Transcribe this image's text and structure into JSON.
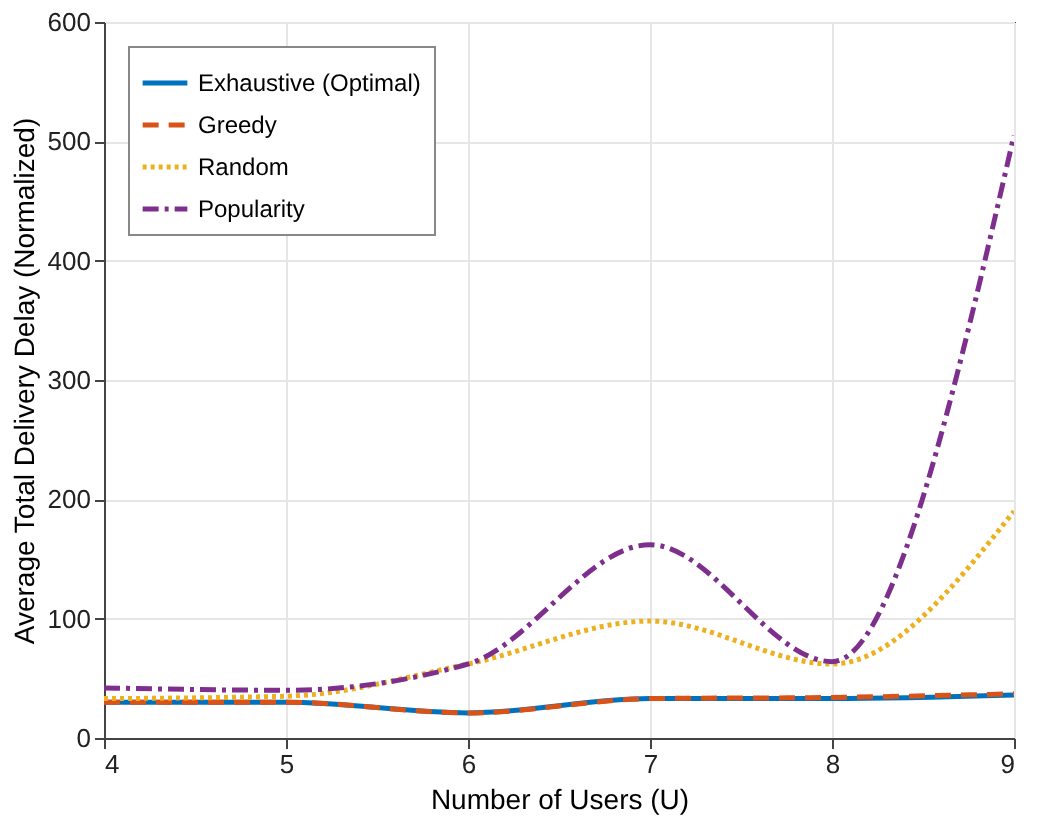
{
  "chart_data": {
    "type": "line",
    "xlabel": "Number of Users (U)",
    "ylabel": "Average Total Delivery Delay (Normalized)",
    "x": [
      4,
      5,
      6,
      7,
      8,
      9
    ],
    "xlim": [
      4,
      9
    ],
    "xticks": [
      4,
      5,
      6,
      7,
      8,
      9
    ],
    "ylim": [
      0,
      600
    ],
    "yticks": [
      0,
      100,
      200,
      300,
      400,
      500,
      600
    ],
    "grid": true,
    "legend": "top left",
    "series": [
      {
        "name": "Exhaustive (Optimal)",
        "color": "#0072bd",
        "line_style": "solid",
        "values": [
          30,
          30,
          21,
          33,
          33,
          36
        ]
      },
      {
        "name": "Greedy",
        "color": "#d95319",
        "line_style": "dashed",
        "values": [
          30,
          30,
          21,
          33,
          34,
          37
        ]
      },
      {
        "name": "Random",
        "color": "#edb120",
        "line_style": "dotted",
        "values": [
          33,
          35,
          62,
          98,
          62,
          190
        ]
      },
      {
        "name": "Popularity",
        "color": "#7e2f8e",
        "line_style": "dashdot",
        "values": [
          42,
          40,
          62,
          162,
          64,
          505
        ]
      }
    ]
  }
}
